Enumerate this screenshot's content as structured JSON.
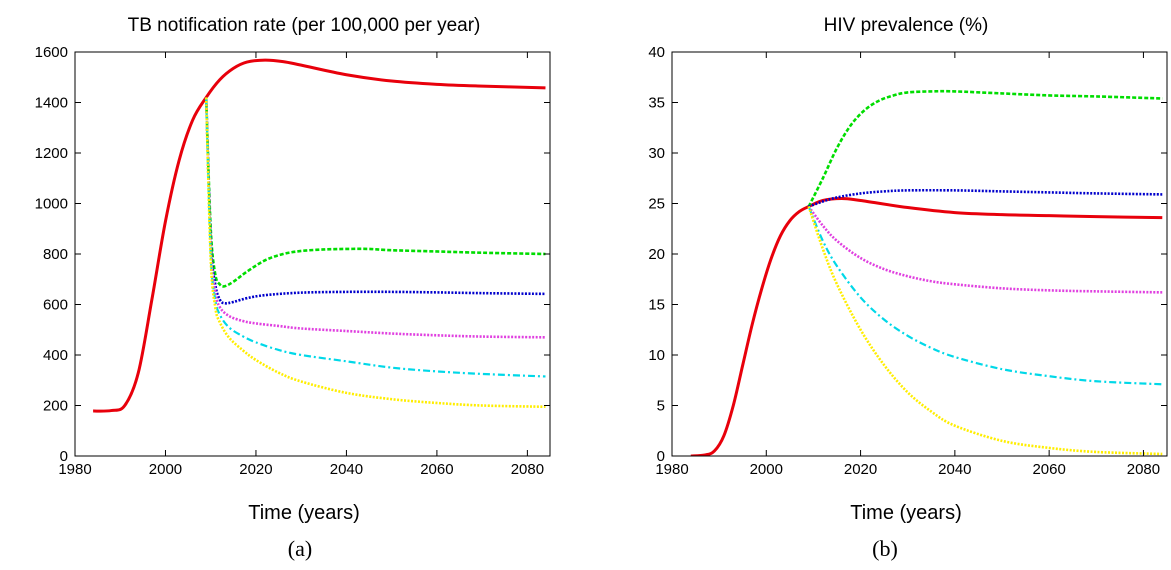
{
  "chart_data": [
    {
      "type": "line",
      "title": "TB notification rate (per 100,000 per year)",
      "xlabel": "Time (years)",
      "ylabel": "",
      "caption": "(a)",
      "xlim": [
        1980,
        2085
      ],
      "ylim": [
        0,
        1600
      ],
      "xticks": [
        "1980",
        "2000",
        "2020",
        "2040",
        "2060",
        "2080"
      ],
      "yticks": [
        "0",
        "200",
        "400",
        "600",
        "800",
        "1000",
        "1200",
        "1400",
        "1600"
      ],
      "grid": false,
      "series": [
        {
          "color": "#e8000b",
          "style": "solid",
          "x": [
            1984,
            1988,
            1991,
            1994,
            1997,
            2000,
            2003,
            2006,
            2009,
            2012,
            2015,
            2018,
            2022,
            2026,
            2030,
            2040,
            2050,
            2060,
            2070,
            2084
          ],
          "y": [
            178,
            180,
            200,
            330,
            620,
            930,
            1170,
            1330,
            1420,
            1490,
            1535,
            1560,
            1568,
            1562,
            1548,
            1510,
            1485,
            1472,
            1465,
            1458
          ]
        },
        {
          "color": "#00dd00",
          "style": "dashed",
          "x": [
            2009,
            2010,
            2011,
            2012,
            2013,
            2015,
            2018,
            2022,
            2026,
            2030,
            2035,
            2040,
            2045,
            2050,
            2060,
            2070,
            2084
          ],
          "y": [
            1420,
            900,
            720,
            680,
            672,
            690,
            730,
            775,
            800,
            812,
            818,
            820,
            820,
            815,
            810,
            805,
            800
          ]
        },
        {
          "color": "#0000cc",
          "style": "dotted",
          "x": [
            2009,
            2010,
            2011,
            2012,
            2013,
            2015,
            2018,
            2022,
            2030,
            2040,
            2050,
            2060,
            2070,
            2084
          ],
          "y": [
            1420,
            850,
            680,
            620,
            605,
            610,
            625,
            637,
            647,
            650,
            650,
            648,
            645,
            642
          ]
        },
        {
          "color": "#e040e0",
          "style": "dotted",
          "x": [
            2009,
            2010,
            2011,
            2012,
            2014,
            2017,
            2020,
            2025,
            2030,
            2040,
            2050,
            2060,
            2070,
            2084
          ],
          "y": [
            1420,
            820,
            650,
            590,
            555,
            535,
            525,
            515,
            505,
            495,
            485,
            478,
            473,
            470
          ]
        },
        {
          "color": "#00d8e8",
          "style": "dashdot",
          "x": [
            2009,
            2010,
            2011,
            2012,
            2014,
            2017,
            2020,
            2025,
            2030,
            2040,
            2050,
            2060,
            2070,
            2084
          ],
          "y": [
            1420,
            800,
            620,
            560,
            510,
            475,
            450,
            420,
            400,
            375,
            350,
            335,
            325,
            315
          ]
        },
        {
          "color": "#ffee00",
          "style": "dotted",
          "x": [
            2009,
            2010,
            2011,
            2012,
            2014,
            2017,
            2020,
            2025,
            2030,
            2040,
            2050,
            2060,
            2070,
            2084
          ],
          "y": [
            1420,
            780,
            590,
            530,
            470,
            420,
            380,
            330,
            295,
            250,
            225,
            210,
            200,
            195
          ]
        }
      ]
    },
    {
      "type": "line",
      "title": "HIV prevalence (%)",
      "xlabel": "Time (years)",
      "ylabel": "",
      "caption": "(b)",
      "xlim": [
        1980,
        2085
      ],
      "ylim": [
        0,
        40
      ],
      "xticks": [
        "1980",
        "2000",
        "2020",
        "2040",
        "2060",
        "2080"
      ],
      "yticks": [
        "0",
        "5",
        "10",
        "15",
        "20",
        "25",
        "30",
        "35",
        "40"
      ],
      "grid": false,
      "series": [
        {
          "color": "#e8000b",
          "style": "solid",
          "x": [
            1984,
            1987,
            1989,
            1991,
            1993,
            1995,
            1997,
            1999,
            2001,
            2003,
            2005,
            2007,
            2009,
            2012,
            2016,
            2020,
            2030,
            2040,
            2050,
            2060,
            2070,
            2084
          ],
          "y": [
            0,
            0.1,
            0.5,
            2,
            5,
            9,
            13,
            16.5,
            19.5,
            21.8,
            23.3,
            24.2,
            24.7,
            25.3,
            25.5,
            25.3,
            24.6,
            24.1,
            23.9,
            23.8,
            23.7,
            23.6
          ]
        },
        {
          "color": "#00dd00",
          "style": "dashed",
          "x": [
            2009,
            2012,
            2015,
            2018,
            2021,
            2024,
            2027,
            2030,
            2035,
            2040,
            2050,
            2060,
            2070,
            2084
          ],
          "y": [
            24.7,
            27.5,
            30.5,
            32.8,
            34.3,
            35.2,
            35.7,
            36.0,
            36.1,
            36.1,
            35.9,
            35.7,
            35.6,
            35.4
          ]
        },
        {
          "color": "#0000cc",
          "style": "dotted",
          "x": [
            2009,
            2012,
            2015,
            2020,
            2025,
            2030,
            2040,
            2050,
            2060,
            2070,
            2084
          ],
          "y": [
            24.7,
            25.2,
            25.6,
            26.0,
            26.2,
            26.3,
            26.3,
            26.2,
            26.1,
            26.0,
            25.9
          ]
        },
        {
          "color": "#e040e0",
          "style": "dotted",
          "x": [
            2009,
            2012,
            2015,
            2020,
            2025,
            2030,
            2035,
            2040,
            2050,
            2060,
            2070,
            2084
          ],
          "y": [
            24.7,
            22.8,
            21.3,
            19.6,
            18.5,
            17.8,
            17.3,
            17.0,
            16.6,
            16.4,
            16.3,
            16.2
          ]
        },
        {
          "color": "#00d8e8",
          "style": "dashdot",
          "x": [
            2009,
            2012,
            2015,
            2020,
            2025,
            2030,
            2035,
            2040,
            2050,
            2060,
            2070,
            2084
          ],
          "y": [
            24.7,
            21.3,
            18.8,
            15.7,
            13.5,
            11.9,
            10.7,
            9.8,
            8.6,
            7.9,
            7.4,
            7.1
          ]
        },
        {
          "color": "#ffee00",
          "style": "dotted",
          "x": [
            2009,
            2012,
            2015,
            2020,
            2025,
            2030,
            2035,
            2040,
            2050,
            2060,
            2070,
            2084
          ],
          "y": [
            24.7,
            20.5,
            17.0,
            12.5,
            9.0,
            6.3,
            4.4,
            3.0,
            1.5,
            0.8,
            0.4,
            0.2
          ]
        }
      ]
    }
  ]
}
